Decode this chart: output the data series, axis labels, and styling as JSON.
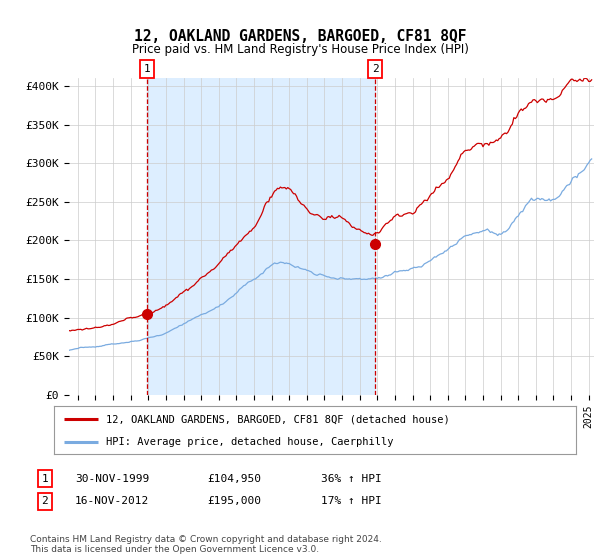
{
  "title": "12, OAKLAND GARDENS, BARGOED, CF81 8QF",
  "subtitle": "Price paid vs. HM Land Registry's House Price Index (HPI)",
  "ylabel_ticks": [
    "£0",
    "£50K",
    "£100K",
    "£150K",
    "£200K",
    "£250K",
    "£300K",
    "£350K",
    "£400K"
  ],
  "ylim": [
    0,
    410000
  ],
  "xlim_start": 1995.5,
  "xlim_end": 2025.3,
  "legend_line1": "12, OAKLAND GARDENS, BARGOED, CF81 8QF (detached house)",
  "legend_line2": "HPI: Average price, detached house, Caerphilly",
  "sale1_date": 1999.92,
  "sale1_price": 104950,
  "sale1_label": "1",
  "sale2_date": 2012.88,
  "sale2_price": 195000,
  "sale2_label": "2",
  "table_data": [
    [
      "1",
      "30-NOV-1999",
      "£104,950",
      "36% ↑ HPI"
    ],
    [
      "2",
      "16-NOV-2012",
      "£195,000",
      "17% ↑ HPI"
    ]
  ],
  "footnote": "Contains HM Land Registry data © Crown copyright and database right 2024.\nThis data is licensed under the Open Government Licence v3.0.",
  "line_color_red": "#cc0000",
  "line_color_blue": "#7aabe0",
  "shade_color": "#ddeeff",
  "background_color": "#ffffff",
  "grid_color": "#cccccc"
}
